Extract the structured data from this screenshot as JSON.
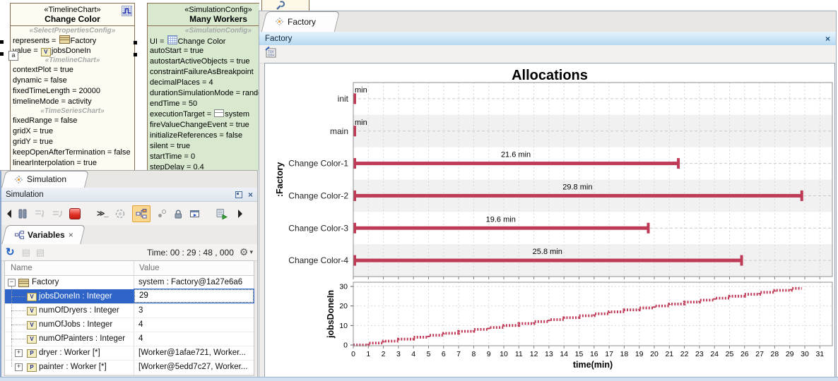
{
  "colors": {
    "bar_crimson": "#bf3a56",
    "selection_blue": "#2e64c8",
    "box_green": "#d8e9cf",
    "box_border_brown": "#8a6d4f",
    "band_gray": "#f1f1f1"
  },
  "icons": {
    "close": "×",
    "dropdown": "▾",
    "gear": "⚙",
    "refresh": "↻",
    "console": "≫_",
    "expand": "+",
    "collapse": "−",
    "disabled_export_1": "▤",
    "disabled_export_2": "▤"
  },
  "diagram": {
    "change_color_box": {
      "stereotype": "«TimelineChart»",
      "name": "Change Color",
      "lines": [
        {
          "t": "h",
          "text": "«SelectPropertiesConfig»"
        },
        {
          "t": "p",
          "pre": "represents = ",
          "icon": "class",
          "post": "Factory"
        },
        {
          "t": "p",
          "pre": "value = ",
          "icon": "value",
          "letter": "V",
          "post": "jobsDoneIn"
        },
        {
          "t": "h",
          "text": "«TimelineChart»"
        },
        {
          "t": "p",
          "pre": "contextPlot = true"
        },
        {
          "t": "p",
          "pre": "dynamic = false"
        },
        {
          "t": "p",
          "pre": "fixedTimeLength = 20000"
        },
        {
          "t": "p",
          "pre": "timelineMode = activity"
        },
        {
          "t": "h",
          "text": "«TimeSeriesChart»"
        },
        {
          "t": "p",
          "pre": "fixedRange = false"
        },
        {
          "t": "p",
          "pre": "gridX = true"
        },
        {
          "t": "p",
          "pre": "gridY = true"
        },
        {
          "t": "p",
          "pre": "keepOpenAfterTermination = false"
        },
        {
          "t": "p",
          "pre": "linearInterpolation = true"
        }
      ]
    },
    "many_workers_box": {
      "stereotype": "«SimulationConfig»",
      "name": "Many Workers",
      "lines": [
        {
          "t": "h",
          "text": "«SimulationConfig»"
        },
        {
          "t": "p",
          "pre": "UI = ",
          "icon": "chart",
          "post": "Change Color"
        },
        {
          "t": "p",
          "pre": "autoStart = true"
        },
        {
          "t": "p",
          "pre": "autostartActiveObjects = true"
        },
        {
          "t": "p",
          "pre": "constraintFailureAsBreakpoint"
        },
        {
          "t": "p",
          "pre": "decimalPlaces = 4"
        },
        {
          "t": "p",
          "pre": "durationSimulationMode = random"
        },
        {
          "t": "p",
          "pre": "endTime = 50"
        },
        {
          "t": "p",
          "pre": "executionTarget = ",
          "icon": "exec",
          "post": "system"
        },
        {
          "t": "p",
          "pre": "fireValueChangeEvent = true"
        },
        {
          "t": "p",
          "pre": "initializeReferences = false"
        },
        {
          "t": "p",
          "pre": "silent = true"
        },
        {
          "t": "p",
          "pre": "startTime = 0"
        },
        {
          "t": "p",
          "pre": "stepDelay = 0.4"
        }
      ]
    }
  },
  "simulation_window": {
    "tab_label": "Simulation",
    "panel_title": "Simulation",
    "variables_tab_label": "Variables",
    "time_label": "Time: 00 : 29 : 48 , 000",
    "table": {
      "columns": [
        "Name",
        "Value"
      ],
      "rows": [
        {
          "name": "Factory",
          "value": "system : Factory@1a27e6a6",
          "icon": "class",
          "expander": "minus",
          "indent": 0,
          "selected": false
        },
        {
          "name": "jobsDoneIn : Integer",
          "value": "29",
          "icon": "value",
          "letter": "V",
          "indent": 1,
          "selected": true,
          "editing": true
        },
        {
          "name": "numOfDryers : Integer",
          "value": "3",
          "icon": "value",
          "letter": "V",
          "indent": 1
        },
        {
          "name": "numOfJobs : Integer",
          "value": "4",
          "icon": "value",
          "letter": "V",
          "indent": 1
        },
        {
          "name": "numOfPainters : Integer",
          "value": "4",
          "icon": "value",
          "letter": "V",
          "indent": 1
        },
        {
          "name": "dryer : Worker [*]",
          "value": "[Worker@1afae721, Worker...",
          "icon": "part",
          "letter": "P",
          "expander": "plus",
          "indent": 1
        },
        {
          "name": "painter : Worker [*]",
          "value": "[Worker@5edd7c27, Worker...",
          "icon": "part",
          "letter": "P",
          "expander": "plus",
          "indent": 1
        }
      ]
    }
  },
  "factory_window": {
    "tab_label": "Factory",
    "header_title": "Factory"
  },
  "chart_data": [
    {
      "type": "bar",
      "subtype": "gantt-duration",
      "title": "Allocations",
      "y_axis_label": ":Factory",
      "categories": [
        "init",
        "main",
        "Change Color-1",
        "Change Color-2",
        "Change Color-3",
        "Change Color-4"
      ],
      "durations_min": [
        0.08,
        0.08,
        21.6,
        29.8,
        19.6,
        25.8
      ],
      "bar_labels": [
        "min",
        "min",
        "21.6 min",
        "29.8 min",
        "19.6 min",
        "25.8 min"
      ],
      "xlim": [
        0,
        31.8
      ],
      "bar_color": "#bf3a56",
      "grid": true,
      "alternating_bands": true
    },
    {
      "type": "line",
      "subtype": "step",
      "series_name": "jobsDoneIn",
      "ylabel": "jobsDoneIn",
      "xlabel": "time(min)",
      "xlim": [
        0,
        31.8
      ],
      "ylim": [
        0,
        30
      ],
      "y_ticks": [
        0,
        10,
        20,
        30
      ],
      "x_tick_labels": [
        0,
        1,
        2,
        3,
        4,
        5,
        6,
        7,
        8,
        9,
        10,
        11,
        12,
        13,
        14,
        15,
        16,
        17,
        18,
        19,
        20,
        21,
        22,
        23,
        24,
        25,
        26,
        27,
        28,
        29,
        30,
        31
      ],
      "start_value": 0,
      "increments_at": [
        1,
        2,
        3,
        4,
        5,
        6,
        7,
        8,
        9,
        10,
        11,
        12,
        13,
        14,
        15,
        16,
        17,
        18,
        19,
        20,
        21,
        22,
        23,
        24,
        25,
        26,
        27,
        28,
        29.1
      ],
      "end_time": 29.8,
      "final_value": 29,
      "line_color": "#bf3a56",
      "grid": true
    }
  ]
}
